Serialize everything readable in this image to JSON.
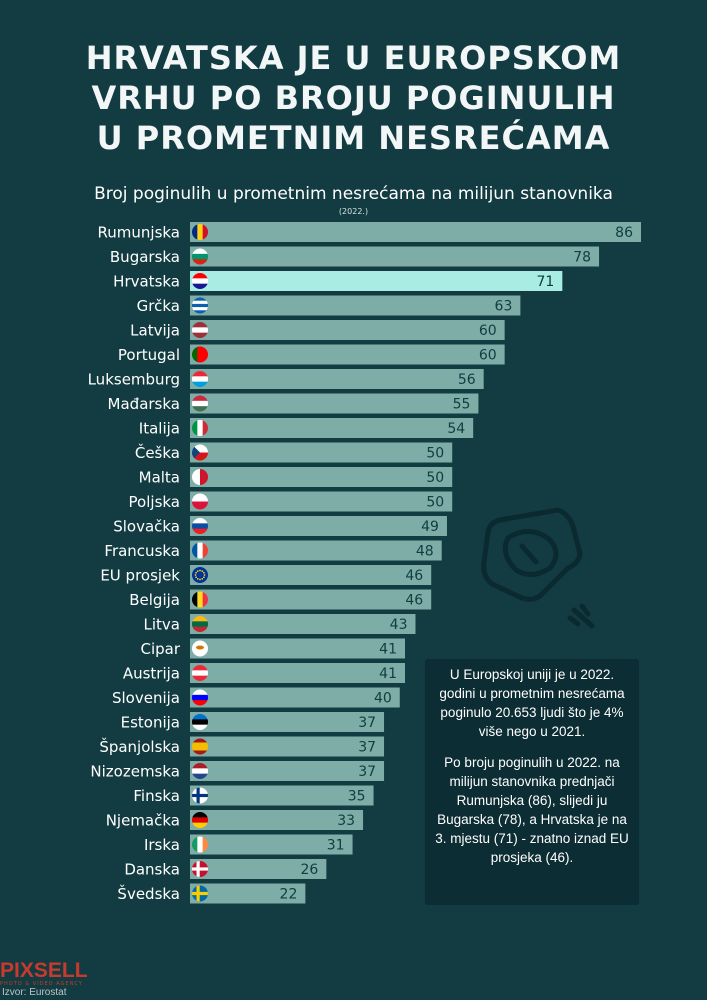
{
  "title_lines": [
    "HRVATSKA JE U EUROPSKOM",
    "VRHU PO BROJU POGINULIH",
    "U PROMETNIM NESREĆAMA"
  ],
  "colors": {
    "background": "#123c42",
    "bar": "#7dada6",
    "bar_highlight": "#a8ece3",
    "infobox": "#0c2d33",
    "logo": "#c9392d"
  },
  "chart_data": {
    "type": "bar",
    "orientation": "horizontal",
    "title": "Broj poginulih u prometnim nesrećama na milijun stanovnika",
    "subtitle": "(2022.)",
    "highlight": "Hrvatska",
    "categories": [
      "Rumunjska",
      "Bugarska",
      "Hrvatska",
      "Grčka",
      "Latvija",
      "Portugal",
      "Luksemburg",
      "Mađarska",
      "Italija",
      "Češka",
      "Malta",
      "Poljska",
      "Slovačka",
      "Francuska",
      "EU prosjek",
      "Belgija",
      "Litva",
      "Cipar",
      "Austrija",
      "Slovenija",
      "Estonija",
      "Španjolska",
      "Nizozemska",
      "Finska",
      "Njemačka",
      "Irska",
      "Danska",
      "Švedska"
    ],
    "values": [
      86,
      78,
      71,
      63,
      60,
      60,
      56,
      55,
      54,
      50,
      50,
      50,
      49,
      48,
      46,
      46,
      43,
      41,
      41,
      40,
      37,
      37,
      37,
      35,
      33,
      31,
      26,
      22
    ],
    "flags": [
      "ro",
      "bg",
      "hr",
      "gr",
      "lv",
      "pt",
      "lu",
      "hu",
      "it",
      "cz",
      "mt",
      "pl",
      "sk",
      "fr",
      "eu",
      "be",
      "lt",
      "cy",
      "at",
      "si",
      "ee",
      "es",
      "nl",
      "fi",
      "de",
      "ie",
      "dk",
      "se"
    ],
    "xlim": [
      0,
      86
    ],
    "grid": false,
    "legend": "none"
  },
  "info": {
    "p1": "U Europskoj uniji je u 2022. godini u prometnim nesrećama poginulo 20.653 ljudi što je 4% više nego u 2021.",
    "p2": "Po broju poginulih u 2022. na milijun stanovnika prednjači Rumunjska (86), slijedi ju Bugarska (78), a Hrvatska je na 3. mjestu (71) - znatno iznad EU prosjeka (46)."
  },
  "logo": {
    "name": "PIXSELL",
    "tagline": "PHOTO & VIDEO AGENCY"
  },
  "source": "Izvor: Eurostat"
}
